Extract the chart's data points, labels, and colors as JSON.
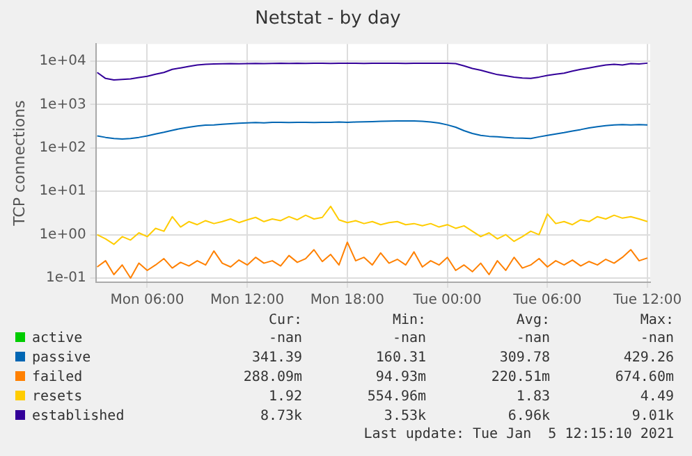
{
  "chart_data": {
    "type": "line",
    "title": "Netstat - by day",
    "ylabel": "TCP connections",
    "x": [
      "2021-01-04T03:00",
      "2021-01-04T03:30",
      "2021-01-04T04:00",
      "2021-01-04T04:30",
      "2021-01-04T05:00",
      "2021-01-04T05:30",
      "2021-01-04T06:00",
      "2021-01-04T06:30",
      "2021-01-04T07:00",
      "2021-01-04T07:30",
      "2021-01-04T08:00",
      "2021-01-04T08:30",
      "2021-01-04T09:00",
      "2021-01-04T09:30",
      "2021-01-04T10:00",
      "2021-01-04T10:30",
      "2021-01-04T11:00",
      "2021-01-04T11:30",
      "2021-01-04T12:00",
      "2021-01-04T12:30",
      "2021-01-04T13:00",
      "2021-01-04T13:30",
      "2021-01-04T14:00",
      "2021-01-04T14:30",
      "2021-01-04T15:00",
      "2021-01-04T15:30",
      "2021-01-04T16:00",
      "2021-01-04T16:30",
      "2021-01-04T17:00",
      "2021-01-04T17:30",
      "2021-01-04T18:00",
      "2021-01-04T18:30",
      "2021-01-04T19:00",
      "2021-01-04T19:30",
      "2021-01-04T20:00",
      "2021-01-04T20:30",
      "2021-01-04T21:00",
      "2021-01-04T21:30",
      "2021-01-04T22:00",
      "2021-01-04T22:30",
      "2021-01-04T23:00",
      "2021-01-04T23:30",
      "2021-01-05T00:00",
      "2021-01-05T00:30",
      "2021-01-05T01:00",
      "2021-01-05T01:30",
      "2021-01-05T02:00",
      "2021-01-05T02:30",
      "2021-01-05T03:00",
      "2021-01-05T03:30",
      "2021-01-05T04:00",
      "2021-01-05T04:30",
      "2021-01-05T05:00",
      "2021-01-05T05:30",
      "2021-01-05T06:00",
      "2021-01-05T06:30",
      "2021-01-05T07:00",
      "2021-01-05T07:30",
      "2021-01-05T08:00",
      "2021-01-05T08:30",
      "2021-01-05T09:00",
      "2021-01-05T09:30",
      "2021-01-05T10:00",
      "2021-01-05T10:30",
      "2021-01-05T11:00",
      "2021-01-05T11:30",
      "2021-01-05T12:00"
    ],
    "series": [
      {
        "name": "active",
        "color": "#00cc00",
        "values": [
          null,
          null,
          null,
          null,
          null,
          null,
          null,
          null,
          null,
          null,
          null,
          null,
          null,
          null,
          null,
          null,
          null,
          null,
          null,
          null,
          null,
          null,
          null,
          null,
          null,
          null,
          null,
          null,
          null,
          null,
          null,
          null,
          null,
          null,
          null,
          null,
          null,
          null,
          null,
          null,
          null,
          null,
          null,
          null,
          null,
          null,
          null,
          null,
          null,
          null,
          null,
          null,
          null,
          null,
          null,
          null,
          null,
          null,
          null,
          null,
          null,
          null,
          null,
          null,
          null,
          null,
          null
        ]
      },
      {
        "name": "passive",
        "color": "#0066b3",
        "values": [
          190,
          175,
          165,
          160,
          165,
          175,
          190,
          210,
          230,
          255,
          280,
          300,
          320,
          335,
          340,
          350,
          360,
          370,
          380,
          385,
          380,
          390,
          390,
          385,
          390,
          390,
          385,
          390,
          390,
          395,
          390,
          395,
          400,
          405,
          410,
          415,
          420,
          420,
          420,
          410,
          395,
          375,
          340,
          300,
          250,
          215,
          195,
          185,
          180,
          175,
          170,
          168,
          165,
          180,
          195,
          210,
          225,
          245,
          265,
          290,
          310,
          325,
          340,
          345,
          340,
          345,
          340
        ]
      },
      {
        "name": "failed",
        "color": "#ff8000",
        "values": [
          0.18,
          0.25,
          0.12,
          0.2,
          0.1,
          0.22,
          0.15,
          0.2,
          0.28,
          0.17,
          0.23,
          0.19,
          0.25,
          0.2,
          0.42,
          0.22,
          0.18,
          0.26,
          0.2,
          0.3,
          0.22,
          0.25,
          0.19,
          0.33,
          0.23,
          0.28,
          0.45,
          0.24,
          0.35,
          0.2,
          0.67,
          0.25,
          0.3,
          0.2,
          0.38,
          0.22,
          0.27,
          0.2,
          0.4,
          0.18,
          0.25,
          0.2,
          0.3,
          0.15,
          0.2,
          0.14,
          0.22,
          0.12,
          0.25,
          0.15,
          0.3,
          0.17,
          0.2,
          0.28,
          0.18,
          0.25,
          0.2,
          0.26,
          0.19,
          0.24,
          0.2,
          0.27,
          0.22,
          0.3,
          0.45,
          0.25,
          0.29
        ]
      },
      {
        "name": "resets",
        "color": "#ffcc00",
        "values": [
          1.0,
          0.8,
          0.6,
          0.9,
          0.75,
          1.1,
          0.9,
          1.4,
          1.2,
          2.6,
          1.5,
          2.0,
          1.7,
          2.1,
          1.8,
          2.0,
          2.3,
          1.9,
          2.2,
          2.5,
          2.0,
          2.3,
          2.1,
          2.6,
          2.2,
          2.8,
          2.3,
          2.5,
          4.49,
          2.2,
          1.9,
          2.1,
          1.8,
          2.0,
          1.7,
          1.9,
          2.0,
          1.7,
          1.8,
          1.6,
          1.8,
          1.5,
          1.7,
          1.4,
          1.6,
          1.2,
          0.9,
          1.1,
          0.8,
          1.0,
          0.7,
          0.9,
          1.2,
          1.0,
          3.0,
          1.8,
          2.0,
          1.7,
          2.2,
          2.0,
          2.6,
          2.3,
          2.8,
          2.4,
          2.6,
          2.3,
          2.0
        ]
      },
      {
        "name": "established",
        "color": "#330099",
        "values": [
          5500,
          4000,
          3700,
          3800,
          3900,
          4200,
          4500,
          5000,
          5500,
          6500,
          7000,
          7600,
          8200,
          8500,
          8600,
          8700,
          8800,
          8700,
          8800,
          8900,
          8800,
          8900,
          9000,
          8900,
          9000,
          8900,
          9000,
          9000,
          8900,
          9000,
          9000,
          9000,
          8900,
          9000,
          9000,
          9000,
          9000,
          8900,
          9000,
          9000,
          9000,
          9000,
          9000,
          8800,
          7800,
          6800,
          6200,
          5500,
          4900,
          4600,
          4300,
          4100,
          4000,
          4300,
          4700,
          5000,
          5300,
          5900,
          6500,
          7000,
          7600,
          8200,
          8500,
          8200,
          8800,
          8600,
          9000
        ]
      }
    ],
    "log": "y",
    "ylim": [
      0.08,
      25000
    ],
    "yticks": [
      {
        "value": 0.1,
        "label": "1e-01"
      },
      {
        "value": 1,
        "label": "1e+00"
      },
      {
        "value": 10,
        "label": "1e+01"
      },
      {
        "value": 100,
        "label": "1e+02"
      },
      {
        "value": 1000,
        "label": "1e+03"
      },
      {
        "value": 10000,
        "label": "1e+04"
      }
    ],
    "xlim": [
      "2021-01-04T02:55",
      "2021-01-05T12:10"
    ],
    "xticks": [
      {
        "value": "2021-01-04T06:00",
        "label": "Mon 06:00"
      },
      {
        "value": "2021-01-04T12:00",
        "label": "Mon 12:00"
      },
      {
        "value": "2021-01-04T18:00",
        "label": "Mon 18:00"
      },
      {
        "value": "2021-01-05T00:00",
        "label": "Tue 00:00"
      },
      {
        "value": "2021-01-05T06:00",
        "label": "Tue 06:00"
      },
      {
        "value": "2021-01-05T12:00",
        "label": "Tue 12:00"
      }
    ],
    "grid": true,
    "legend": "bottom",
    "marker": "none",
    "line_style": "solid",
    "annotations": [
      "Cur:",
      "Min:",
      "Avg:",
      "Max:",
      "-nan",
      "-nan",
      "-nan",
      "-nan",
      "341.39",
      "160.31",
      "309.78",
      "429.26",
      "288.09m",
      "94.93m",
      "220.51m",
      "674.60m",
      "1.92",
      "554.96m",
      "1.83",
      "4.49",
      "8.73k",
      "3.53k",
      "6.96k",
      "9.01k",
      "Last update: Tue Jan  5 12:15:10 2021"
    ]
  }
}
